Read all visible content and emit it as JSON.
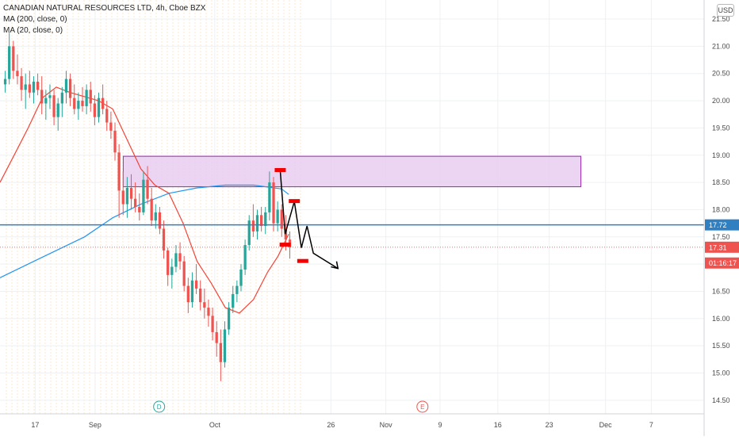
{
  "legend": {
    "symbol": "CANADIAN NATURAL RESOURCES LTD, 4h, Cboe BZX",
    "ma200": "MA (200, close, 0)",
    "ma20": "MA (20, close, 0)"
  },
  "currency": "USD",
  "chart_data": {
    "type": "candlestick",
    "y_axis": {
      "ticks": [
        "21.50",
        "21.00",
        "20.50",
        "20.00",
        "19.50",
        "19.00",
        "18.50",
        "18.00",
        "17.50",
        "17.00",
        "16.50",
        "16.00",
        "15.50",
        "15.00",
        "14.50"
      ],
      "ylim": [
        14.25,
        21.85
      ]
    },
    "x_axis": {
      "ticks": [
        {
          "label": "17",
          "x": 0.05
        },
        {
          "label": "Sep",
          "x": 0.135
        },
        {
          "label": "Oct",
          "x": 0.305
        },
        {
          "label": "26",
          "x": 0.47
        },
        {
          "label": "Nov",
          "x": 0.548
        },
        {
          "label": "9",
          "x": 0.625
        },
        {
          "label": "16",
          "x": 0.707
        },
        {
          "label": "23",
          "x": 0.78
        },
        {
          "label": "Dec",
          "x": 0.86
        },
        {
          "label": "7",
          "x": 0.925
        }
      ]
    },
    "event_markers": [
      {
        "label": "D",
        "x": 0.226
      },
      {
        "label": "E",
        "x": 0.6
      }
    ],
    "price_labels": [
      {
        "name": "horizontal-line",
        "value": 17.72,
        "text": "17.72",
        "color": "#2f7fc1"
      },
      {
        "name": "last-price",
        "value": 17.31,
        "text": "17.31",
        "color": "#ef5350"
      },
      {
        "name": "countdown",
        "value": 17.02,
        "text": "01:16:17",
        "color": "#ef5350"
      }
    ],
    "resistance_zone": {
      "y_top": 18.98,
      "y_bottom": 18.42,
      "x_start": 0.175,
      "x_end": 0.825,
      "color": "#e9ccf1"
    },
    "candles": [
      [
        20.3,
        20.55,
        20.15,
        20.4
      ],
      [
        20.4,
        21.25,
        20.3,
        21.0
      ],
      [
        21.0,
        21.1,
        20.4,
        20.55
      ],
      [
        20.55,
        20.85,
        20.3,
        20.45
      ],
      [
        20.45,
        20.6,
        20.0,
        20.2
      ],
      [
        20.2,
        20.5,
        19.85,
        20.3
      ],
      [
        20.3,
        20.55,
        20.05,
        20.15
      ],
      [
        20.15,
        20.45,
        19.95,
        20.35
      ],
      [
        20.35,
        20.5,
        20.1,
        20.2
      ],
      [
        20.2,
        20.45,
        19.75,
        19.95
      ],
      [
        19.95,
        20.2,
        19.65,
        20.05
      ],
      [
        20.05,
        20.3,
        19.85,
        20.1
      ],
      [
        20.1,
        20.2,
        19.55,
        19.7
      ],
      [
        19.7,
        20.05,
        19.45,
        19.95
      ],
      [
        19.95,
        20.25,
        19.7,
        20.15
      ],
      [
        20.15,
        20.55,
        19.95,
        20.4
      ],
      [
        20.4,
        20.5,
        19.9,
        20.05
      ],
      [
        20.05,
        20.3,
        19.75,
        19.85
      ],
      [
        19.85,
        20.15,
        19.65,
        20.0
      ],
      [
        20.0,
        20.25,
        19.8,
        19.9
      ],
      [
        19.9,
        20.3,
        19.75,
        20.2
      ],
      [
        20.2,
        20.35,
        19.8,
        19.95
      ],
      [
        19.95,
        20.1,
        19.55,
        19.7
      ],
      [
        19.7,
        20.15,
        19.6,
        20.05
      ],
      [
        20.05,
        20.3,
        19.75,
        19.85
      ],
      [
        19.85,
        20.0,
        19.45,
        19.6
      ],
      [
        19.6,
        19.8,
        19.3,
        19.45
      ],
      [
        19.45,
        19.6,
        18.9,
        19.05
      ],
      [
        19.05,
        19.2,
        17.85,
        18.35
      ],
      [
        18.35,
        18.7,
        17.9,
        18.1
      ],
      [
        18.1,
        18.6,
        17.85,
        18.4
      ],
      [
        18.4,
        18.65,
        18.0,
        18.2
      ],
      [
        18.2,
        18.5,
        17.95,
        18.05
      ],
      [
        18.05,
        18.3,
        17.8,
        17.95
      ],
      [
        17.95,
        18.7,
        17.9,
        18.55
      ],
      [
        18.55,
        18.8,
        18.1,
        18.2
      ],
      [
        18.2,
        18.4,
        17.7,
        17.8
      ],
      [
        17.8,
        18.1,
        17.65,
        17.95
      ],
      [
        17.95,
        18.05,
        17.55,
        17.65
      ],
      [
        17.65,
        17.8,
        17.1,
        17.25
      ],
      [
        17.25,
        17.3,
        16.6,
        16.8
      ],
      [
        16.8,
        17.1,
        16.55,
        16.95
      ],
      [
        16.95,
        17.35,
        16.85,
        17.2
      ],
      [
        17.2,
        17.4,
        16.9,
        17.05
      ],
      [
        17.05,
        17.15,
        16.5,
        16.6
      ],
      [
        16.6,
        16.75,
        16.1,
        16.3
      ],
      [
        16.3,
        16.85,
        16.2,
        16.7
      ],
      [
        16.7,
        17.0,
        16.45,
        16.55
      ],
      [
        16.55,
        16.7,
        16.15,
        16.3
      ],
      [
        16.3,
        16.55,
        16.0,
        16.2
      ],
      [
        16.2,
        16.35,
        15.85,
        16.05
      ],
      [
        16.05,
        16.2,
        15.6,
        15.75
      ],
      [
        15.75,
        15.95,
        15.3,
        15.55
      ],
      [
        15.55,
        15.8,
        14.85,
        15.2
      ],
      [
        15.2,
        15.95,
        15.1,
        15.8
      ],
      [
        15.8,
        16.3,
        15.7,
        16.2
      ],
      [
        16.2,
        16.6,
        16.1,
        16.45
      ],
      [
        16.45,
        16.7,
        16.3,
        16.6
      ],
      [
        16.6,
        17.0,
        16.5,
        16.9
      ],
      [
        16.9,
        17.45,
        16.8,
        17.35
      ],
      [
        17.35,
        17.9,
        17.25,
        17.8
      ],
      [
        17.8,
        18.1,
        17.5,
        17.6
      ],
      [
        17.6,
        18.0,
        17.45,
        17.9
      ],
      [
        17.9,
        18.05,
        17.6,
        17.7
      ],
      [
        17.7,
        18.05,
        17.55,
        17.95
      ],
      [
        17.95,
        18.7,
        17.8,
        18.5
      ],
      [
        18.5,
        18.6,
        17.6,
        17.75
      ],
      [
        17.75,
        18.15,
        17.6,
        18.0
      ],
      [
        18.0,
        18.1,
        17.5,
        17.65
      ],
      [
        17.65,
        17.9,
        17.25,
        17.45
      ],
      [
        17.45,
        17.6,
        17.1,
        17.31
      ]
    ],
    "ma200": [
      [
        0.0,
        16.75
      ],
      [
        0.04,
        17.0
      ],
      [
        0.08,
        17.25
      ],
      [
        0.12,
        17.5
      ],
      [
        0.16,
        17.85
      ],
      [
        0.2,
        18.1
      ],
      [
        0.24,
        18.3
      ],
      [
        0.28,
        18.4
      ],
      [
        0.32,
        18.45
      ],
      [
        0.36,
        18.45
      ],
      [
        0.4,
        18.38
      ],
      [
        0.41,
        18.28
      ]
    ],
    "ma20": [
      [
        0.0,
        18.5
      ],
      [
        0.02,
        19.0
      ],
      [
        0.04,
        19.5
      ],
      [
        0.06,
        20.05
      ],
      [
        0.08,
        20.25
      ],
      [
        0.1,
        20.15
      ],
      [
        0.14,
        20.0
      ],
      [
        0.16,
        19.85
      ],
      [
        0.18,
        19.3
      ],
      [
        0.2,
        18.75
      ],
      [
        0.22,
        18.45
      ],
      [
        0.24,
        18.3
      ],
      [
        0.26,
        17.75
      ],
      [
        0.28,
        17.05
      ],
      [
        0.3,
        16.65
      ],
      [
        0.32,
        16.2
      ],
      [
        0.34,
        16.1
      ],
      [
        0.36,
        16.35
      ],
      [
        0.38,
        16.85
      ],
      [
        0.395,
        17.15
      ],
      [
        0.41,
        17.55
      ]
    ]
  }
}
